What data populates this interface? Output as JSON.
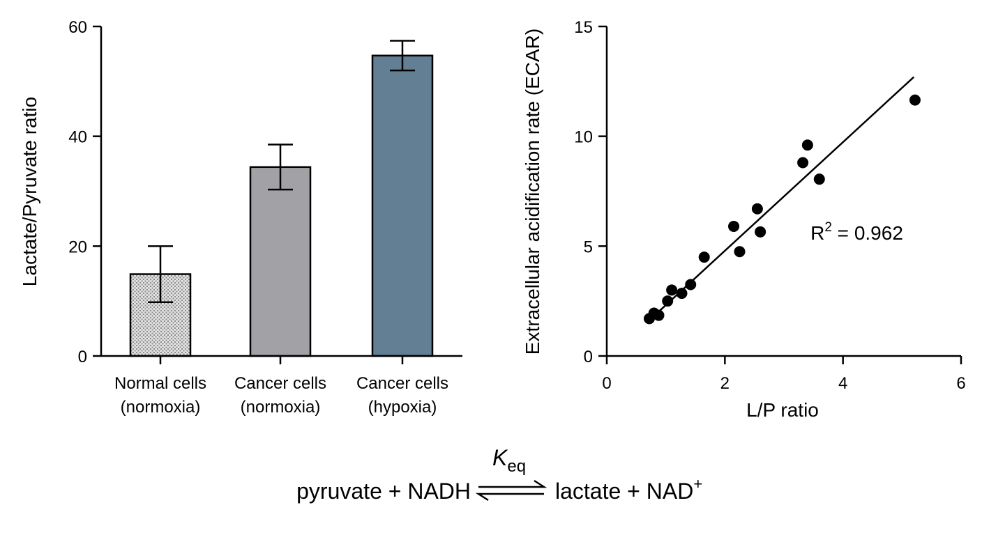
{
  "chart_data": [
    {
      "type": "bar",
      "ylabel": "Lactate/Pyruvate ratio",
      "xlabel": "",
      "ylim": [
        0,
        60
      ],
      "yticks": [
        0,
        20,
        40,
        60
      ],
      "categories": [
        {
          "line1": "Normal cells",
          "line2": "(normoxia)"
        },
        {
          "line1": "Cancer cells",
          "line2": "(normoxia)"
        },
        {
          "line1": "Cancer cells",
          "line2": "(hypoxia)"
        }
      ],
      "values": [
        14.9,
        34.4,
        54.7
      ],
      "error_low": [
        9.8,
        30.3,
        52.0
      ],
      "error_high": [
        20.0,
        38.5,
        57.4
      ],
      "colors": [
        "#d6d6d6",
        "#a2a2a6",
        "#637f93"
      ],
      "patterns": [
        "dotted",
        "solid",
        "solid"
      ],
      "grid": false
    },
    {
      "type": "scatter",
      "xlabel": "L/P ratio",
      "ylabel": "Extracellular acidification rate (ECAR)",
      "xlim": [
        0,
        6
      ],
      "ylim": [
        0,
        15
      ],
      "xticks": [
        0,
        2,
        4,
        6
      ],
      "yticks": [
        0,
        5,
        10,
        15
      ],
      "points": [
        {
          "x": 0.72,
          "y": 1.7
        },
        {
          "x": 0.8,
          "y": 1.95
        },
        {
          "x": 0.88,
          "y": 1.85
        },
        {
          "x": 1.03,
          "y": 2.5
        },
        {
          "x": 1.1,
          "y": 3.0
        },
        {
          "x": 1.27,
          "y": 2.85
        },
        {
          "x": 1.42,
          "y": 3.25
        },
        {
          "x": 1.65,
          "y": 4.5
        },
        {
          "x": 2.15,
          "y": 5.9
        },
        {
          "x": 2.25,
          "y": 4.75
        },
        {
          "x": 2.55,
          "y": 6.7
        },
        {
          "x": 2.6,
          "y": 5.65
        },
        {
          "x": 3.32,
          "y": 8.8
        },
        {
          "x": 3.4,
          "y": 9.6
        },
        {
          "x": 3.6,
          "y": 8.05
        },
        {
          "x": 5.22,
          "y": 11.65
        }
      ],
      "fit_line": {
        "x0": 0.75,
        "y0": 1.7,
        "x1": 5.2,
        "y1": 12.7
      },
      "annotation": {
        "text": "R",
        "superscript": "2",
        "rest": " = 0.962",
        "x": 3.45,
        "y": 5.3
      },
      "grid": false
    }
  ],
  "equation": {
    "left": "pyruvate + NADH",
    "right": "lactate + NAD",
    "right_sup": "+",
    "k_main": "K",
    "k_sub": "eq"
  }
}
